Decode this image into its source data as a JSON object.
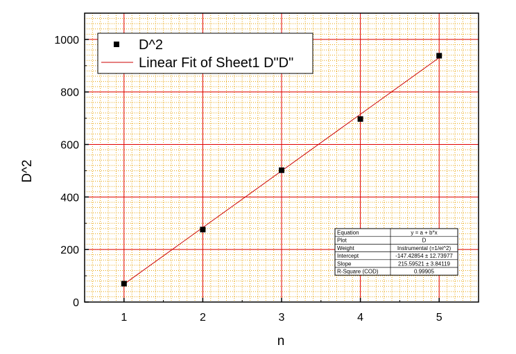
{
  "chart_data": {
    "type": "scatter",
    "xlabel": "n",
    "ylabel": "D^2",
    "xlim": [
      0.5,
      5.5
    ],
    "ylim": [
      0,
      1100
    ],
    "x_ticks": [
      1,
      2,
      3,
      4,
      5
    ],
    "y_ticks": [
      0,
      200,
      400,
      600,
      800,
      1000
    ],
    "grid": true,
    "series": [
      {
        "name": "D^2",
        "kind": "points",
        "marker": "square",
        "color": "#000000",
        "x": [
          1,
          2,
          3,
          4,
          5
        ],
        "y": [
          70,
          276,
          502,
          697,
          938
        ]
      },
      {
        "name": "Linear Fit of Sheet1 D\"D\"",
        "kind": "line",
        "color": "#cc0000",
        "x": [
          1,
          5
        ],
        "y": [
          68.17,
          930.55
        ]
      }
    ],
    "legend": {
      "position": "top-left",
      "entries": [
        "D^2",
        "Linear Fit of Sheet1 D\"D\""
      ]
    },
    "fit_table": {
      "position": "bottom-right",
      "rows": [
        [
          "Equation",
          "y = a + b*x"
        ],
        [
          "Plot",
          "D"
        ],
        [
          "Weight",
          "Instrumental (=1/ei^2)"
        ],
        [
          "Intercept",
          "-147.42854 ± 12.73977"
        ],
        [
          "Slope",
          "215.59521 ± 3.84119"
        ],
        [
          "R-Square (COD)",
          "0.99905"
        ]
      ]
    },
    "colors": {
      "major_grid": "#e00000",
      "minor_grid": "#e8a000",
      "fit_line": "#cc0000"
    }
  }
}
